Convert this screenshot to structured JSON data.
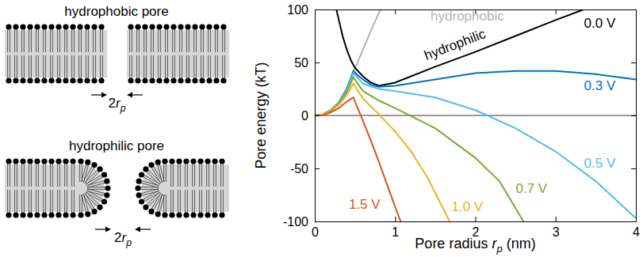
{
  "chart_data": {
    "type": "line",
    "x_label": [
      {
        "text": "Pore radius "
      },
      {
        "text": "r",
        "italic": true
      },
      {
        "text": "p",
        "italic": true,
        "sub": true
      },
      {
        "text": " (nm)"
      }
    ],
    "y_label": "Pore energy (kT)",
    "xlim": [
      0,
      4
    ],
    "xticks": [
      0,
      1,
      2,
      3,
      4
    ],
    "ylim": [
      -100,
      100
    ],
    "yticks": [
      -100,
      -50,
      0,
      50,
      100
    ],
    "grid": false,
    "reference_lines": [
      0
    ],
    "series": [
      {
        "name": "hydrophobic",
        "color": "#b3b3b3",
        "label_x": 1.9,
        "label_y": 93,
        "x": [
          0,
          0.1,
          0.2,
          0.3,
          0.4,
          0.5,
          0.6,
          0.7,
          0.8,
          0.82
        ],
        "values": [
          0,
          1,
          5,
          13,
          26,
          44,
          62,
          80,
          97,
          100
        ]
      },
      {
        "name": "0.0 V",
        "color": "#000000",
        "label_x": 3.55,
        "label_y": 86,
        "x": [
          0.27,
          0.3,
          0.35,
          0.4,
          0.45,
          0.5,
          0.6,
          0.7,
          0.8,
          1.0,
          1.5,
          2.0,
          2.5,
          3.0,
          3.35
        ],
        "values": [
          100,
          90,
          74,
          62,
          52,
          45,
          37,
          31,
          28,
          31,
          46,
          60,
          75,
          90,
          100
        ]
      },
      {
        "name": "0.3 V",
        "color": "#0072bd",
        "label_x": 3.55,
        "label_y": 27,
        "x": [
          0,
          0.1,
          0.2,
          0.3,
          0.4,
          0.48,
          0.55,
          0.6,
          0.7,
          0.8,
          1.0,
          1.5,
          2.0,
          2.5,
          3.0,
          3.5,
          4.0
        ],
        "values": [
          0,
          1,
          5,
          12,
          25,
          42,
          37,
          34,
          29,
          27,
          28,
          34,
          40,
          42,
          42,
          39,
          34
        ]
      },
      {
        "name": "0.5 V",
        "color": "#4dbeee",
        "label_x": 3.55,
        "label_y": -46,
        "x": [
          0,
          0.1,
          0.2,
          0.3,
          0.4,
          0.48,
          0.6,
          0.8,
          1.0,
          1.5,
          2.0,
          2.5,
          3.0,
          3.5,
          4.0
        ],
        "values": [
          0,
          1,
          5,
          12,
          24,
          40,
          30,
          25,
          23,
          17,
          5,
          -12,
          -34,
          -62,
          -97
        ]
      },
      {
        "name": "0.7 V",
        "color": "#77ac30",
        "label_x": 2.7,
        "label_y": -70,
        "x": [
          0,
          0.1,
          0.2,
          0.3,
          0.4,
          0.48,
          0.6,
          0.8,
          1.0,
          1.5,
          2.0,
          2.3,
          2.6
        ],
        "values": [
          0,
          1,
          5,
          11,
          22,
          36,
          23,
          14,
          7,
          -12,
          -40,
          -62,
          -100
        ]
      },
      {
        "name": "1.0 V",
        "color": "#edb120",
        "label_x": 1.9,
        "label_y": -87,
        "x": [
          0,
          0.1,
          0.2,
          0.3,
          0.4,
          0.48,
          0.6,
          0.8,
          1.0,
          1.2,
          1.4,
          1.68
        ],
        "values": [
          0,
          1,
          4,
          10,
          19,
          30,
          16,
          1,
          -15,
          -34,
          -58,
          -100
        ]
      },
      {
        "name": "1.5 V",
        "color": "#d95319",
        "label_x": 0.62,
        "label_y": -85,
        "x": [
          0,
          0.1,
          0.2,
          0.3,
          0.4,
          0.48,
          0.6,
          0.7,
          0.8,
          0.9,
          1.0,
          1.07
        ],
        "values": [
          0,
          0,
          3,
          7,
          13,
          17,
          -5,
          -24,
          -44,
          -65,
          -86,
          -100
        ]
      }
    ],
    "annotations": [
      {
        "text": "hydrophilic",
        "x": 1.75,
        "y": 66
      }
    ]
  },
  "diagram": {
    "panels": [
      {
        "title": "hydrophobic pore",
        "pore": "hydrophobic",
        "gap_label": [
          {
            "text": "2"
          },
          {
            "text": "r",
            "italic": true
          },
          {
            "text": "p",
            "italic": true,
            "sub": true
          }
        ]
      },
      {
        "title": "hydrophilic pore",
        "pore": "hydrophilic",
        "gap_label": [
          {
            "text": "2"
          },
          {
            "text": "r",
            "italic": true
          },
          {
            "text": "p",
            "italic": true,
            "sub": true
          }
        ]
      }
    ]
  }
}
